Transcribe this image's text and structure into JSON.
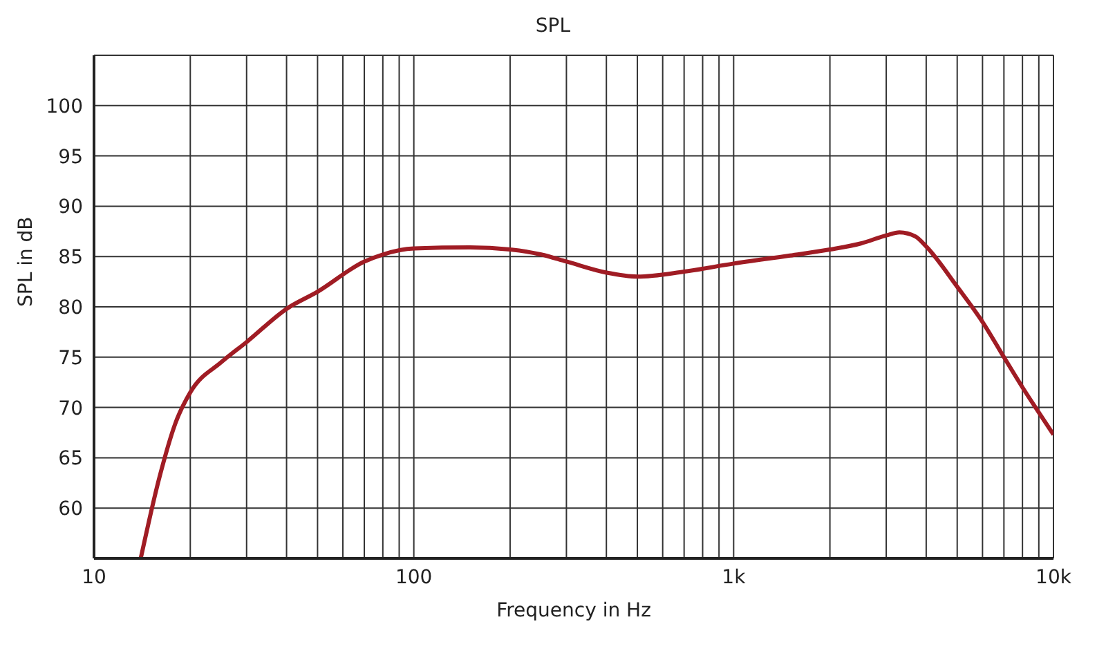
{
  "chart_data": {
    "type": "line",
    "title": "SPL",
    "xlabel": "Frequency in Hz",
    "ylabel": "SPL in dB",
    "log": "x",
    "grid": true,
    "legend": false,
    "marker": "none",
    "line_style": "solid",
    "xlim": [
      10,
      10000
    ],
    "xticks": [
      10,
      {
        "value": 20,
        "label": null
      },
      {
        "value": 30,
        "label": null
      },
      {
        "value": 40,
        "label": null
      },
      {
        "value": 50,
        "label": null
      },
      {
        "value": 60,
        "label": null
      },
      {
        "value": 70,
        "label": null
      },
      {
        "value": 80,
        "label": null
      },
      {
        "value": 90,
        "label": null
      },
      100,
      {
        "value": 200,
        "label": null
      },
      {
        "value": 300,
        "label": null
      },
      {
        "value": 400,
        "label": null
      },
      {
        "value": 500,
        "label": null
      },
      {
        "value": 600,
        "label": null
      },
      {
        "value": 700,
        "label": null
      },
      {
        "value": 800,
        "label": null
      },
      {
        "value": 900,
        "label": null
      },
      {
        "value": 1000,
        "label": "1k"
      },
      {
        "value": 2000,
        "label": null
      },
      {
        "value": 3000,
        "label": null
      },
      {
        "value": 4000,
        "label": null
      },
      {
        "value": 5000,
        "label": null
      },
      {
        "value": 6000,
        "label": null
      },
      {
        "value": 7000,
        "label": null
      },
      {
        "value": 8000,
        "label": null
      },
      {
        "value": 9000,
        "label": null
      },
      {
        "value": 10000,
        "label": "10k"
      }
    ],
    "ylim": [
      55,
      105
    ],
    "yticks": [
      {
        "value": 55,
        "label": null
      },
      60,
      65,
      70,
      75,
      80,
      85,
      90,
      95,
      100,
      {
        "value": 105,
        "label": null
      }
    ],
    "x": [
      14,
      16,
      18,
      20,
      25,
      30,
      40,
      50,
      70,
      80,
      100,
      150,
      200,
      250,
      300,
      400,
      500,
      700,
      1000,
      1500,
      2000,
      2500,
      3000,
      3300,
      3700,
      4000,
      5000,
      6000,
      7000,
      8000,
      9000,
      10000
    ],
    "series": [
      {
        "color": "#a01c24",
        "values": [
          55,
          63,
          68.5,
          71.5,
          74.5,
          76.5,
          79.8,
          81.5,
          84.5,
          85.2,
          85.8,
          85.9,
          85.7,
          85.2,
          84.5,
          83.4,
          83,
          83.5,
          84.3,
          85.1,
          85.7,
          86.3,
          87.1,
          87.4,
          87,
          86,
          82,
          78.5,
          75,
          72,
          69.5,
          67.3
        ]
      }
    ]
  }
}
